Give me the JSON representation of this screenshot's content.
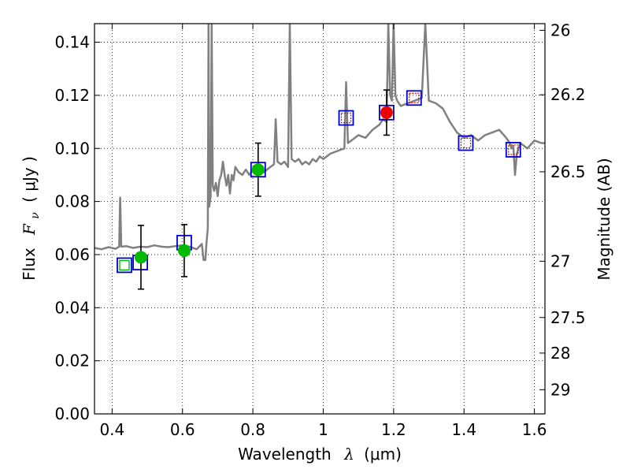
{
  "chart_data": {
    "type": "scatter",
    "title": "",
    "xlabel_prefix": "Wavelength",
    "xlabel_math": "λ",
    "xlabel_unit": "(μm)",
    "ylabel_prefix": "Flux",
    "ylabel_math": "F",
    "ylabel_sub": "ν",
    "ylabel_unit": "( μJy )",
    "y2label": "Magnitude (AB)",
    "xlim": [
      0.35,
      1.63
    ],
    "ylim": [
      0.0,
      0.147
    ],
    "grid": true,
    "x_ticks": [
      0.4,
      0.6,
      0.8,
      1.0,
      1.2,
      1.4,
      1.6
    ],
    "x_tick_labels": [
      "0.4",
      "0.6",
      "0.8",
      "1",
      "1.2",
      "1.4",
      "1.6"
    ],
    "y_ticks": [
      0.0,
      0.02,
      0.04,
      0.06,
      0.08,
      0.1,
      0.12,
      0.14
    ],
    "y_tick_labels": [
      "0.00",
      "0.02",
      "0.04",
      "0.06",
      "0.08",
      "0.10",
      "0.12",
      "0.14"
    ],
    "y2_ticks": [
      {
        "flux": 0.1445,
        "label": "26"
      },
      {
        "flux": 0.1202,
        "label": "26.2"
      },
      {
        "flux": 0.0912,
        "label": "26.5"
      },
      {
        "flux": 0.0575,
        "label": "27"
      },
      {
        "flux": 0.0363,
        "label": "27.5"
      },
      {
        "flux": 0.0229,
        "label": "28"
      },
      {
        "flux": 0.0091,
        "label": "29"
      }
    ],
    "colors": {
      "template": "#808080",
      "model_box": "#0000cc",
      "green": "#00bb00",
      "red": "#ee0000",
      "errorbar": "#000000"
    },
    "series": [
      {
        "kind": "template",
        "points": [
          [
            0.35,
            0.0625
          ],
          [
            0.37,
            0.062
          ],
          [
            0.39,
            0.0628
          ],
          [
            0.41,
            0.0622
          ],
          [
            0.42,
            0.063
          ],
          [
            0.423,
            0.0815
          ],
          [
            0.426,
            0.063
          ],
          [
            0.44,
            0.0632
          ],
          [
            0.46,
            0.0625
          ],
          [
            0.48,
            0.063
          ],
          [
            0.5,
            0.0628
          ],
          [
            0.52,
            0.0635
          ],
          [
            0.54,
            0.063
          ],
          [
            0.56,
            0.0628
          ],
          [
            0.58,
            0.0632
          ],
          [
            0.6,
            0.0635
          ],
          [
            0.62,
            0.063
          ],
          [
            0.64,
            0.062
          ],
          [
            0.655,
            0.064
          ],
          [
            0.66,
            0.058
          ],
          [
            0.665,
            0.058
          ],
          [
            0.668,
            0.064
          ],
          [
            0.672,
            0.07
          ],
          [
            0.674,
            0.147
          ],
          [
            0.676,
            0.078
          ],
          [
            0.68,
            0.082
          ],
          [
            0.683,
            0.147
          ],
          [
            0.686,
            0.086
          ],
          [
            0.69,
            0.084
          ],
          [
            0.695,
            0.087
          ],
          [
            0.7,
            0.082
          ],
          [
            0.705,
            0.088
          ],
          [
            0.71,
            0.09
          ],
          [
            0.715,
            0.095
          ],
          [
            0.72,
            0.09
          ],
          [
            0.725,
            0.086
          ],
          [
            0.73,
            0.09
          ],
          [
            0.735,
            0.083
          ],
          [
            0.74,
            0.09
          ],
          [
            0.745,
            0.088
          ],
          [
            0.75,
            0.093
          ],
          [
            0.76,
            0.091
          ],
          [
            0.77,
            0.09
          ],
          [
            0.78,
            0.092
          ],
          [
            0.79,
            0.09
          ],
          [
            0.8,
            0.092
          ],
          [
            0.81,
            0.091
          ],
          [
            0.82,
            0.092
          ],
          [
            0.83,
            0.091
          ],
          [
            0.84,
            0.092
          ],
          [
            0.85,
            0.093
          ],
          [
            0.86,
            0.094
          ],
          [
            0.865,
            0.111
          ],
          [
            0.87,
            0.095
          ],
          [
            0.88,
            0.094
          ],
          [
            0.89,
            0.095
          ],
          [
            0.9,
            0.093
          ],
          [
            0.905,
            0.147
          ],
          [
            0.91,
            0.096
          ],
          [
            0.92,
            0.095
          ],
          [
            0.93,
            0.096
          ],
          [
            0.94,
            0.094
          ],
          [
            0.95,
            0.095
          ],
          [
            0.96,
            0.094
          ],
          [
            0.97,
            0.096
          ],
          [
            0.98,
            0.095
          ],
          [
            0.99,
            0.097
          ],
          [
            1.0,
            0.096
          ],
          [
            1.02,
            0.098
          ],
          [
            1.04,
            0.099
          ],
          [
            1.06,
            0.1
          ],
          [
            1.065,
            0.125
          ],
          [
            1.07,
            0.102
          ],
          [
            1.08,
            0.103
          ],
          [
            1.1,
            0.105
          ],
          [
            1.12,
            0.104
          ],
          [
            1.14,
            0.107
          ],
          [
            1.16,
            0.109
          ],
          [
            1.17,
            0.111
          ],
          [
            1.18,
            0.11
          ],
          [
            1.185,
            0.147
          ],
          [
            1.19,
            0.12
          ],
          [
            1.195,
            0.118
          ],
          [
            1.2,
            0.147
          ],
          [
            1.205,
            0.12
          ],
          [
            1.21,
            0.118
          ],
          [
            1.22,
            0.116
          ],
          [
            1.24,
            0.117
          ],
          [
            1.26,
            0.118
          ],
          [
            1.28,
            0.119
          ],
          [
            1.29,
            0.147
          ],
          [
            1.3,
            0.118
          ],
          [
            1.32,
            0.117
          ],
          [
            1.34,
            0.115
          ],
          [
            1.36,
            0.11
          ],
          [
            1.38,
            0.106
          ],
          [
            1.4,
            0.104
          ],
          [
            1.42,
            0.105
          ],
          [
            1.44,
            0.103
          ],
          [
            1.46,
            0.105
          ],
          [
            1.48,
            0.106
          ],
          [
            1.5,
            0.107
          ],
          [
            1.52,
            0.104
          ],
          [
            1.53,
            0.102
          ],
          [
            1.535,
            0.1
          ],
          [
            1.54,
            0.101
          ],
          [
            1.545,
            0.09
          ],
          [
            1.55,
            0.098
          ],
          [
            1.56,
            0.102
          ],
          [
            1.58,
            0.1
          ],
          [
            1.6,
            0.103
          ],
          [
            1.62,
            0.102
          ],
          [
            1.63,
            0.102
          ]
        ]
      },
      {
        "kind": "model_boxes",
        "points": [
          [
            0.435,
            0.056
          ],
          [
            0.48,
            0.057
          ],
          [
            0.605,
            0.0645
          ],
          [
            0.815,
            0.092
          ],
          [
            1.065,
            0.1115
          ],
          [
            1.18,
            0.1135
          ],
          [
            1.258,
            0.119
          ],
          [
            1.405,
            0.102
          ],
          [
            1.54,
            0.0995
          ]
        ]
      },
      {
        "kind": "inner_green_boxes",
        "points": [
          [
            0.435,
            0.056
          ]
        ]
      },
      {
        "kind": "inner_red_boxes",
        "points": [
          [
            1.065,
            0.1115
          ],
          [
            1.258,
            0.119
          ],
          [
            1.405,
            0.102
          ],
          [
            1.54,
            0.0995
          ]
        ]
      },
      {
        "kind": "green_points",
        "points": [
          {
            "x": 0.482,
            "y": 0.059,
            "err": 0.012
          },
          {
            "x": 0.605,
            "y": 0.0615,
            "err": 0.0098
          },
          {
            "x": 0.815,
            "y": 0.092,
            "err": 0.01
          }
        ]
      },
      {
        "kind": "red_points",
        "points": [
          {
            "x": 1.18,
            "y": 0.1135,
            "err": 0.0085
          }
        ]
      }
    ]
  }
}
